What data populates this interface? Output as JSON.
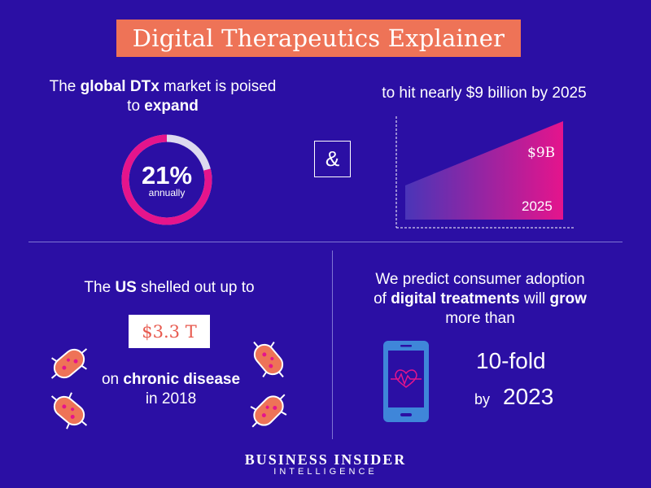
{
  "title": "Digital Therapeutics Explainer",
  "panel_market": {
    "text_1": "The ",
    "text_bold_1": "global DTx",
    "text_2": " market is poised",
    "text_3": "to ",
    "text_bold_2": "expand",
    "ring_value": "21%",
    "ring_label": "annually",
    "ring_fraction": 0.79
  },
  "ampersand": "&",
  "panel_growth": {
    "text": "to hit nearly $9 billion by 2025",
    "value_label": "$9B",
    "year_label": "2025"
  },
  "panel_us": {
    "text_1": "The ",
    "text_bold_1": "US",
    "text_2": " shelled out up to",
    "amount": "$3.3 T",
    "text_3": "on ",
    "text_bold_2": "chronic disease",
    "text_4": "in 2018"
  },
  "panel_adoption": {
    "line_1": "We predict consumer adoption",
    "line_2_a": "of ",
    "line_2_bold_a": "digital treatments",
    "line_2_b": " will ",
    "line_2_bold_b": "grow",
    "line_3": "more than",
    "fold": "10-fold",
    "by": "by",
    "year": "2023"
  },
  "brand": {
    "name": "BUSINESS INSIDER",
    "sub": "INTELLIGENCE"
  },
  "colors": {
    "background": "#2b0fa4",
    "title_bg": "#ee7357",
    "magenta": "#e5148c",
    "orange": "#ee7357",
    "phone": "#3f86d9"
  }
}
